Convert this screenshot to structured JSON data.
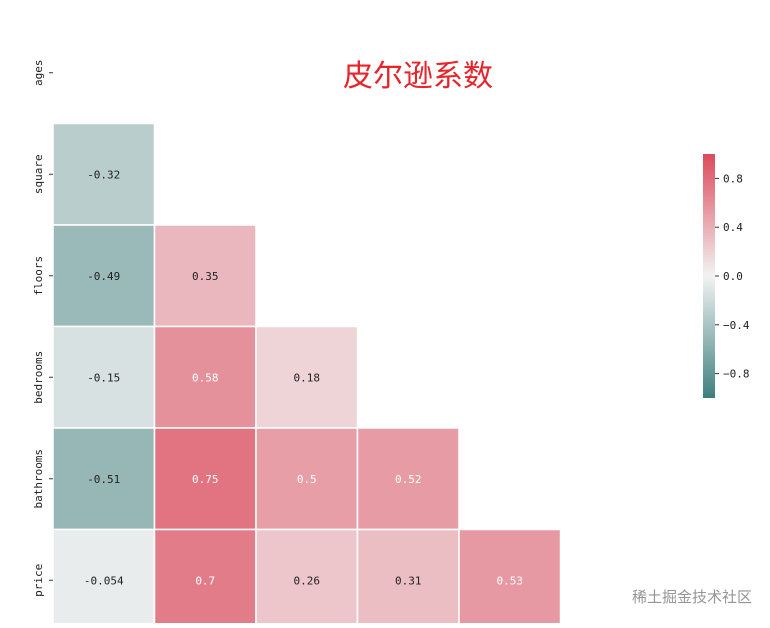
{
  "chart_data": {
    "type": "heatmap",
    "title": "皮尔逊系数",
    "variables": [
      "ages",
      "square",
      "floors",
      "bedrooms",
      "bathrooms",
      "price"
    ],
    "mask": "upper-triangle-including-diagonal",
    "cells": [
      {
        "row": "square",
        "col": "ages",
        "value": -0.32,
        "label": "-0.32"
      },
      {
        "row": "floors",
        "col": "ages",
        "value": -0.49,
        "label": "-0.49"
      },
      {
        "row": "floors",
        "col": "square",
        "value": 0.35,
        "label": "0.35"
      },
      {
        "row": "bedrooms",
        "col": "ages",
        "value": -0.15,
        "label": "-0.15"
      },
      {
        "row": "bedrooms",
        "col": "square",
        "value": 0.58,
        "label": "0.58"
      },
      {
        "row": "bedrooms",
        "col": "floors",
        "value": 0.18,
        "label": "0.18"
      },
      {
        "row": "bathrooms",
        "col": "ages",
        "value": -0.51,
        "label": "-0.51"
      },
      {
        "row": "bathrooms",
        "col": "square",
        "value": 0.75,
        "label": "0.75"
      },
      {
        "row": "bathrooms",
        "col": "floors",
        "value": 0.5,
        "label": "0.5"
      },
      {
        "row": "bathrooms",
        "col": "bedrooms",
        "value": 0.52,
        "label": "0.52"
      },
      {
        "row": "price",
        "col": "ages",
        "value": -0.054,
        "label": "-0.054"
      },
      {
        "row": "price",
        "col": "square",
        "value": 0.7,
        "label": "0.7"
      },
      {
        "row": "price",
        "col": "floors",
        "value": 0.26,
        "label": "0.26"
      },
      {
        "row": "price",
        "col": "bedrooms",
        "value": 0.31,
        "label": "0.31"
      },
      {
        "row": "price",
        "col": "bathrooms",
        "value": 0.53,
        "label": "0.53"
      }
    ],
    "colorbar": {
      "range": [
        -1,
        1
      ],
      "ticks": [
        0.8,
        0.4,
        0.0,
        -0.4,
        -0.8
      ],
      "tick_labels": [
        "0.8",
        "0.4",
        "0.0",
        "−0.4",
        "−0.8"
      ],
      "low_color": "#3f7f7f",
      "mid_color": "#f2f2f2",
      "high_color": "#dc4a5c"
    },
    "title_color": "#e8232a"
  },
  "watermark": "稀土掘金技术社区"
}
